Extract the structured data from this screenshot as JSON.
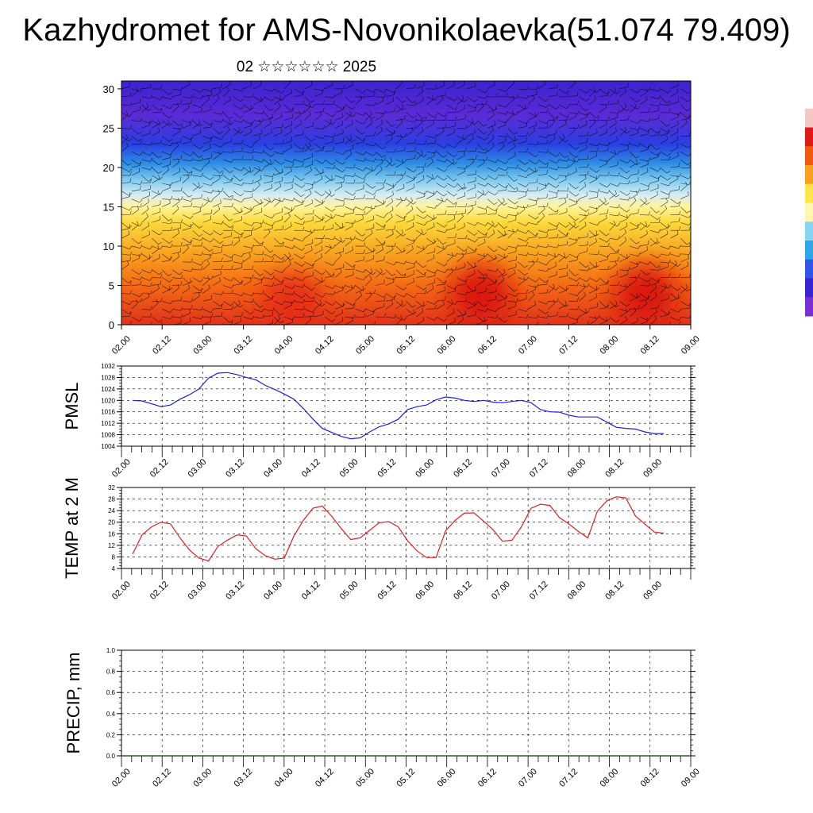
{
  "title": "Kazhydromet for AMS-Novonikolaevka(51.074 79.409)",
  "subtitle": "02 ☆☆☆☆☆☆ 2025",
  "x_tick_labels": [
    "02.00",
    "02.12",
    "03.00",
    "03.12",
    "04.00",
    "04.12",
    "05.00",
    "05.12",
    "06.00",
    "06.12",
    "07.00",
    "07.12",
    "08.00",
    "08.12",
    "09.00"
  ],
  "colors": {
    "pmsl_line": "#1f1fdf",
    "temp_line": "#e01f1f",
    "grid": "#000000"
  },
  "chart_data": [
    {
      "type": "heatmap",
      "name": "vertical cross-section",
      "y_ticks": [
        0,
        5,
        10,
        15,
        20,
        25,
        30
      ],
      "ylim": [
        0,
        31
      ],
      "x_range": [
        "02.00",
        "09.00"
      ],
      "colorbar": [
        "#ffffff",
        "#f4c6c6",
        "#e01818",
        "#f05a10",
        "#f7a21f",
        "#fde64a",
        "#fff7b0",
        "#86d4f2",
        "#2fa6e8",
        "#2f56e6",
        "#3a22d6",
        "#7a2fd0"
      ],
      "gradient_stops": [
        {
          "level": 0,
          "color": "#e0321b"
        },
        {
          "level": 5,
          "color": "#f46a14"
        },
        {
          "level": 9,
          "color": "#f8a11f"
        },
        {
          "level": 13,
          "color": "#fbd93b"
        },
        {
          "level": 15,
          "color": "#fff49c"
        },
        {
          "level": 16.5,
          "color": "#d7ecf4"
        },
        {
          "level": 18.5,
          "color": "#7cc8ee"
        },
        {
          "level": 20.5,
          "color": "#2e8ee4"
        },
        {
          "level": 23,
          "color": "#2a3fe0"
        },
        {
          "level": 26.5,
          "color": "#5b2bd6"
        },
        {
          "level": 31,
          "color": "#3d22cf"
        }
      ],
      "warm_cores": [
        {
          "x": 4.42,
          "y": 4,
          "color": "#d80f0f"
        },
        {
          "x": 6.45,
          "y": 4,
          "color": "#d80f0f"
        },
        {
          "x": 7.55,
          "y": 4.5,
          "color": "#d60e0e"
        },
        {
          "x": 2.1,
          "y": 3,
          "color": "#e62a12"
        }
      ]
    },
    {
      "type": "line",
      "ylabel": "PMSL",
      "ylim": [
        1004,
        1032
      ],
      "y_ticks": [
        1004,
        1008,
        1012,
        1016,
        1020,
        1024,
        1028,
        1032
      ],
      "x_days": [
        0,
        0.125,
        0.25,
        0.375,
        0.5,
        0.625,
        0.75,
        0.875,
        1.0,
        1.125,
        1.25,
        1.375,
        1.5,
        1.625,
        1.75,
        1.875,
        2.0,
        2.125,
        2.25,
        2.375,
        2.5,
        2.625,
        2.75,
        2.875,
        3.0,
        3.125,
        3.25,
        3.375,
        3.5,
        3.625,
        3.75,
        3.875,
        4.0,
        4.125,
        4.25,
        4.375,
        4.5,
        4.625,
        4.75,
        4.875,
        5.0,
        5.125,
        5.25,
        5.375,
        5.5,
        5.625,
        5.75,
        5.875,
        6.0,
        6.125,
        6.25,
        6.375,
        6.5,
        6.625,
        6.75,
        6.875,
        7.0
      ],
      "series": [
        {
          "values": [
            1020,
            1019.8,
            1018.8,
            1017.8,
            1018.4,
            1020.4,
            1022,
            1024,
            1027.8,
            1029.5,
            1029.7,
            1029,
            1028,
            1027.2,
            1025.2,
            1023.8,
            1022.2,
            1020.4,
            1017.2,
            1013.5,
            1010.2,
            1008.8,
            1007.4,
            1006.6,
            1006.9,
            1009,
            1010.8,
            1011.8,
            1013.4,
            1016.8,
            1017.8,
            1018.4,
            1020.2,
            1021.2,
            1020.8,
            1020,
            1019.6,
            1020,
            1019.4,
            1019.2,
            1019.6,
            1020,
            1019.2,
            1016.8,
            1016,
            1015.9,
            1014.8,
            1014.2,
            1014.2,
            1014.2,
            1012.4,
            1010.6,
            1010.2,
            1010,
            1009,
            1008.4,
            1008.4
          ]
        }
      ]
    },
    {
      "type": "line",
      "ylabel": "TEMP at 2 M",
      "ylim": [
        4,
        32
      ],
      "y_ticks": [
        4,
        8,
        12,
        16,
        20,
        24,
        28,
        32
      ],
      "x_days": [
        0,
        0.125,
        0.25,
        0.375,
        0.5,
        0.625,
        0.75,
        0.875,
        1.0,
        1.125,
        1.25,
        1.375,
        1.5,
        1.625,
        1.75,
        1.875,
        2.0,
        2.125,
        2.25,
        2.375,
        2.5,
        2.625,
        2.75,
        2.875,
        3.0,
        3.125,
        3.25,
        3.375,
        3.5,
        3.625,
        3.75,
        3.875,
        4.0,
        4.125,
        4.25,
        4.375,
        4.5,
        4.625,
        4.75,
        4.875,
        5.0,
        5.125,
        5.25,
        5.375,
        5.5,
        5.625,
        5.75,
        5.875,
        6.0,
        6.125,
        6.25,
        6.375,
        6.5,
        6.625,
        6.75,
        6.875,
        7.0
      ],
      "series": [
        {
          "values": [
            9,
            15.6,
            18.4,
            20,
            19.4,
            14.6,
            10.4,
            7.6,
            6.6,
            11.6,
            13.8,
            15.6,
            15.2,
            10.8,
            8.4,
            7.2,
            7.6,
            15.2,
            20.6,
            24.8,
            25.6,
            22,
            17.8,
            14,
            14.6,
            17.2,
            19.8,
            20.2,
            18.4,
            13.6,
            10,
            7.8,
            7.8,
            17,
            20.6,
            23.2,
            23.2,
            20.4,
            17.4,
            13.4,
            13.8,
            18.4,
            24.8,
            26.2,
            25.8,
            21.6,
            19.4,
            16.8,
            14.6,
            23.8,
            27.4,
            28.8,
            28.4,
            22.2,
            19.4,
            16.6,
            16.2
          ]
        }
      ]
    },
    {
      "type": "line",
      "ylabel": "PRECIP, mm",
      "ylim": [
        0,
        1
      ],
      "y_ticks": [
        "0.0",
        "0.2",
        "0.4",
        "0.6",
        "0.8",
        "1.0"
      ],
      "series": [
        {
          "values": [
            0,
            0
          ]
        }
      ]
    }
  ]
}
